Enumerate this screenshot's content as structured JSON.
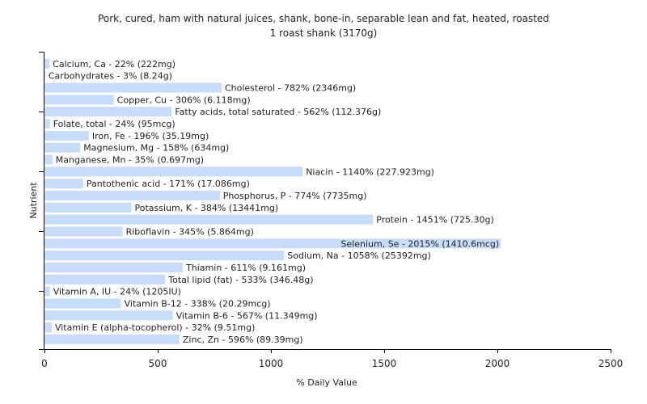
{
  "chart_data": {
    "type": "bar",
    "orientation": "horizontal",
    "title": "Pork, cured, ham with natural juices, shank, bone-in, separable lean and fat, heated, roasted",
    "subtitle": "1 roast shank (3170g)",
    "xlabel": "% Daily Value",
    "ylabel": "Nutrient",
    "xlim": [
      0,
      2500
    ],
    "xticks": [
      0,
      500,
      1000,
      1500,
      2000,
      2500
    ],
    "grid": false,
    "bar_color": "#c6dcf8",
    "categories": [
      "Calcium, Ca",
      "Carbohydrates",
      "Cholesterol",
      "Copper, Cu",
      "Fatty acids, total saturated",
      "Folate, total",
      "Iron, Fe",
      "Magnesium, Mg",
      "Manganese, Mn",
      "Niacin",
      "Pantothenic acid",
      "Phosphorus, P",
      "Potassium, K",
      "Protein",
      "Riboflavin",
      "Selenium, Se",
      "Sodium, Na",
      "Thiamin",
      "Total lipid (fat)",
      "Vitamin A, IU",
      "Vitamin B-12",
      "Vitamin B-6",
      "Vitamin E (alpha-tocopherol)",
      "Zinc, Zn"
    ],
    "values": [
      22,
      3,
      782,
      306,
      562,
      24,
      196,
      158,
      35,
      1140,
      171,
      774,
      384,
      1451,
      345,
      2015,
      1058,
      611,
      533,
      24,
      338,
      567,
      32,
      596
    ],
    "labels": [
      "Calcium, Ca - 22% (222mg)",
      "Carbohydrates - 3% (8.24g)",
      "Cholesterol - 782% (2346mg)",
      "Copper, Cu - 306% (6.118mg)",
      "Fatty acids, total saturated - 562% (112.376g)",
      "Folate, total - 24% (95mcg)",
      "Iron, Fe - 196% (35.19mg)",
      "Magnesium, Mg - 158% (634mg)",
      "Manganese, Mn - 35% (0.697mg)",
      "Niacin - 1140% (227.923mg)",
      "Pantothenic acid - 171% (17.086mg)",
      "Phosphorus, P - 774% (7735mg)",
      "Potassium, K - 384% (13441mg)",
      "Protein - 1451% (725.30g)",
      "Riboflavin - 345% (5.864mg)",
      "Selenium, Se - 2015% (1410.6mcg)",
      "Sodium, Na - 1058% (25392mg)",
      "Thiamin - 611% (9.161mg)",
      "Total lipid (fat) - 533% (346.48g)",
      "Vitamin A, IU - 24% (1205IU)",
      "Vitamin B-12 - 338% (20.29mcg)",
      "Vitamin B-6 - 567% (11.349mg)",
      "Vitamin E (alpha-tocopherol) - 32% (9.51mg)",
      "Zinc, Zn - 596% (89.39mg)"
    ]
  }
}
